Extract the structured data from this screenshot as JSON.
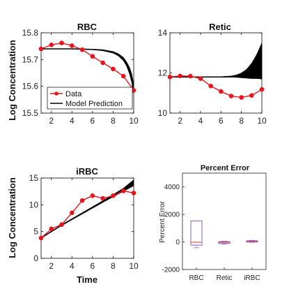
{
  "colors": {
    "data": "#e8141b",
    "model": "#000000",
    "box": "#8a60c8",
    "median": "#e03030"
  },
  "chart_data": [
    {
      "id": "rbc",
      "type": "line",
      "title": "RBC",
      "xlabel": "",
      "ylabel": "Log Concentration",
      "xlim": [
        1,
        10
      ],
      "ylim": [
        15.5,
        15.8
      ],
      "xticks": [
        2,
        4,
        6,
        8,
        10
      ],
      "yticks": [
        15.5,
        15.6,
        15.7,
        15.8
      ],
      "ytick_labels": [
        "15.5",
        "15.6",
        "15.7",
        "15.8"
      ],
      "legend": {
        "position": "bottom-left",
        "entries": [
          "Data",
          "Model Prediction"
        ]
      },
      "series": [
        {
          "name": "Data",
          "x": [
            1,
            2,
            3,
            4,
            5,
            6,
            7,
            8,
            9,
            10
          ],
          "values": [
            15.74,
            15.755,
            15.762,
            15.752,
            15.737,
            15.712,
            15.688,
            15.665,
            15.638,
            15.585
          ]
        },
        {
          "name": "Model Prediction",
          "x": [
            1,
            2,
            3,
            4,
            5,
            6,
            7,
            8,
            8.5,
            9,
            9.3,
            9.6,
            9.8,
            10
          ],
          "values": [
            15.74,
            15.74,
            15.74,
            15.74,
            15.739,
            15.738,
            15.735,
            15.727,
            15.718,
            15.702,
            15.684,
            15.658,
            15.632,
            15.59
          ],
          "band": [
            0,
            0,
            0,
            0,
            0.001,
            0.001,
            0.002,
            0.003,
            0.004,
            0.006,
            0.008,
            0.012,
            0.016,
            0.02
          ]
        }
      ]
    },
    {
      "id": "retic",
      "type": "line",
      "title": "Retic",
      "xlabel": "",
      "ylabel": "",
      "xlim": [
        1,
        10
      ],
      "ylim": [
        10,
        14
      ],
      "xticks": [
        2,
        4,
        6,
        8,
        10
      ],
      "yticks": [
        10,
        12,
        14
      ],
      "ytick_labels": [
        "10",
        "12",
        "14"
      ],
      "series": [
        {
          "name": "Data",
          "x": [
            1,
            2,
            3,
            4,
            5,
            6,
            7,
            8,
            9,
            10
          ],
          "values": [
            11.8,
            11.85,
            11.84,
            11.72,
            11.35,
            11.08,
            10.85,
            10.78,
            10.88,
            11.18
          ]
        },
        {
          "name": "Model Prediction",
          "x": [
            1,
            2,
            3,
            4,
            5,
            6,
            7,
            7.5,
            8,
            8.5,
            9,
            9.5,
            10
          ],
          "values": [
            11.8,
            11.8,
            11.8,
            11.8,
            11.8,
            11.8,
            11.82,
            11.84,
            11.88,
            11.96,
            12.1,
            12.32,
            12.6
          ],
          "band": [
            0,
            0,
            0,
            0,
            0,
            0.01,
            0.03,
            0.06,
            0.12,
            0.22,
            0.38,
            0.6,
            0.9
          ]
        }
      ]
    },
    {
      "id": "irbc",
      "type": "line",
      "title": "iRBC",
      "xlabel": "Time",
      "ylabel": "Log Concentration",
      "xlim": [
        1,
        10
      ],
      "ylim": [
        0,
        15
      ],
      "xticks": [
        2,
        4,
        6,
        8,
        10
      ],
      "yticks": [
        0,
        5,
        10,
        15
      ],
      "ytick_labels": [
        "0",
        "5",
        "10",
        "15"
      ],
      "series": [
        {
          "name": "Data",
          "x": [
            1,
            2,
            3,
            4,
            5,
            6,
            7,
            8,
            9,
            10
          ],
          "values": [
            3.8,
            5.5,
            6.3,
            8.5,
            10.8,
            11.7,
            11.2,
            11.7,
            12.6,
            12.2
          ]
        },
        {
          "name": "Model Prediction",
          "x": [
            1,
            2,
            3,
            4,
            5,
            6,
            7,
            8,
            9,
            10
          ],
          "values": [
            3.8,
            5.0,
            6.2,
            7.3,
            8.4,
            9.5,
            10.6,
            11.7,
            12.8,
            14.1
          ],
          "band": [
            0,
            0.05,
            0.08,
            0.1,
            0.12,
            0.14,
            0.16,
            0.2,
            0.3,
            0.55
          ]
        }
      ]
    },
    {
      "id": "error",
      "type": "box",
      "title": "Percent Error",
      "xlabel": "",
      "ylabel": "Percent Error",
      "categories": [
        "RBC",
        "Retic",
        "iRBC"
      ],
      "ylim": [
        -2000,
        5000
      ],
      "yticks": [
        -2000,
        0,
        2000,
        4000
      ],
      "ytick_labels": [
        "-2000",
        "0",
        "2000",
        "4000"
      ],
      "boxes": [
        {
          "min": -420,
          "q1": -230,
          "median": -20,
          "q3": 1530,
          "max": 1530
        },
        {
          "min": -160,
          "q1": -110,
          "median": -30,
          "q3": 30,
          "max": 60
        },
        {
          "min": -30,
          "q1": 0,
          "median": 40,
          "q3": 90,
          "max": 120
        }
      ]
    }
  ]
}
